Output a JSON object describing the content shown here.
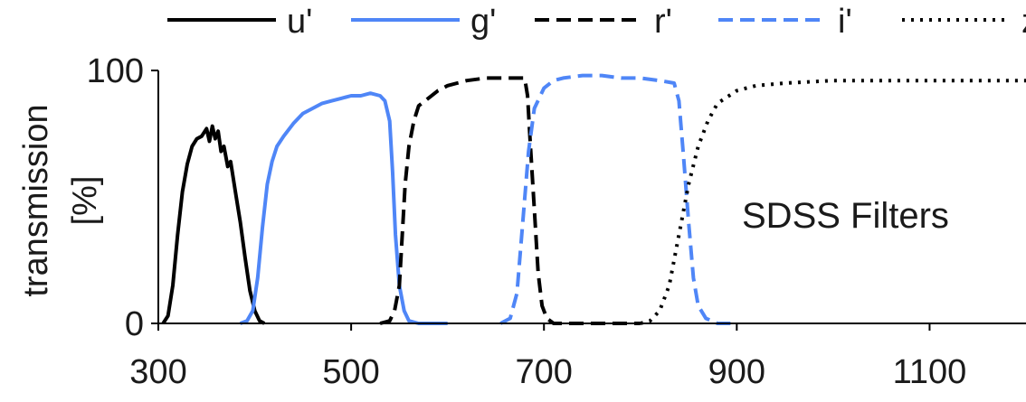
{
  "chart_data": {
    "type": "line",
    "title": "",
    "annotation": "SDSS Filters",
    "xlabel": "",
    "ylabel": [
      "transmission",
      "[%]"
    ],
    "xlim": [
      300,
      1200
    ],
    "ylim": [
      0,
      100
    ],
    "x_ticks": [
      300,
      500,
      700,
      900,
      1100
    ],
    "y_ticks": [
      0,
      100
    ],
    "grid": false,
    "legend_position": "top",
    "series": [
      {
        "name": "u'",
        "color": "#000000",
        "style": "solid",
        "points": [
          [
            305,
            0
          ],
          [
            310,
            3
          ],
          [
            315,
            15
          ],
          [
            320,
            35
          ],
          [
            325,
            52
          ],
          [
            330,
            63
          ],
          [
            335,
            70
          ],
          [
            340,
            73
          ],
          [
            345,
            74
          ],
          [
            350,
            77
          ],
          [
            353,
            72
          ],
          [
            356,
            78
          ],
          [
            359,
            73
          ],
          [
            362,
            76
          ],
          [
            365,
            68
          ],
          [
            368,
            70
          ],
          [
            372,
            62
          ],
          [
            375,
            64
          ],
          [
            380,
            52
          ],
          [
            385,
            40
          ],
          [
            390,
            26
          ],
          [
            395,
            13
          ],
          [
            400,
            5
          ],
          [
            405,
            1
          ],
          [
            410,
            0
          ]
        ]
      },
      {
        "name": "g'",
        "color": "#4f86f7",
        "style": "solid",
        "points": [
          [
            385,
            0
          ],
          [
            392,
            1
          ],
          [
            398,
            5
          ],
          [
            403,
            18
          ],
          [
            408,
            38
          ],
          [
            413,
            55
          ],
          [
            418,
            64
          ],
          [
            423,
            70
          ],
          [
            430,
            74
          ],
          [
            440,
            79
          ],
          [
            450,
            83
          ],
          [
            460,
            85
          ],
          [
            470,
            87
          ],
          [
            480,
            88
          ],
          [
            490,
            89
          ],
          [
            500,
            90
          ],
          [
            510,
            90
          ],
          [
            520,
            91
          ],
          [
            530,
            90
          ],
          [
            535,
            88
          ],
          [
            540,
            80
          ],
          [
            543,
            60
          ],
          [
            546,
            35
          ],
          [
            550,
            15
          ],
          [
            555,
            5
          ],
          [
            560,
            1
          ],
          [
            570,
            0
          ],
          [
            600,
            0
          ]
        ]
      },
      {
        "name": "r'",
        "color": "#000000",
        "style": "dash",
        "points": [
          [
            530,
            0
          ],
          [
            540,
            1
          ],
          [
            545,
            5
          ],
          [
            550,
            15
          ],
          [
            553,
            35
          ],
          [
            556,
            55
          ],
          [
            560,
            70
          ],
          [
            565,
            80
          ],
          [
            570,
            86
          ],
          [
            580,
            89
          ],
          [
            590,
            92
          ],
          [
            600,
            94
          ],
          [
            610,
            95
          ],
          [
            620,
            96
          ],
          [
            640,
            97
          ],
          [
            660,
            97
          ],
          [
            680,
            97
          ],
          [
            683,
            90
          ],
          [
            686,
            70
          ],
          [
            690,
            45
          ],
          [
            694,
            20
          ],
          [
            698,
            7
          ],
          [
            703,
            2
          ],
          [
            710,
            0
          ],
          [
            760,
            0
          ],
          [
            800,
            0
          ]
        ]
      },
      {
        "name": "i'",
        "color": "#4f86f7",
        "style": "dash",
        "points": [
          [
            655,
            0
          ],
          [
            665,
            2
          ],
          [
            672,
            12
          ],
          [
            678,
            40
          ],
          [
            684,
            68
          ],
          [
            690,
            85
          ],
          [
            700,
            93
          ],
          [
            710,
            96
          ],
          [
            720,
            97
          ],
          [
            740,
            98
          ],
          [
            760,
            98
          ],
          [
            780,
            97
          ],
          [
            800,
            97
          ],
          [
            820,
            96
          ],
          [
            835,
            95
          ],
          [
            840,
            88
          ],
          [
            845,
            65
          ],
          [
            850,
            40
          ],
          [
            855,
            18
          ],
          [
            860,
            7
          ],
          [
            868,
            2
          ],
          [
            880,
            0
          ],
          [
            900,
            0
          ]
        ]
      },
      {
        "name": "z'",
        "color": "#000000",
        "style": "dot",
        "points": [
          [
            800,
            0
          ],
          [
            810,
            1
          ],
          [
            820,
            5
          ],
          [
            830,
            15
          ],
          [
            840,
            35
          ],
          [
            850,
            55
          ],
          [
            860,
            70
          ],
          [
            870,
            80
          ],
          [
            880,
            87
          ],
          [
            900,
            92
          ],
          [
            920,
            94
          ],
          [
            950,
            95
          ],
          [
            1000,
            96
          ],
          [
            1050,
            96
          ],
          [
            1100,
            96
          ],
          [
            1150,
            96
          ],
          [
            1200,
            96
          ]
        ]
      }
    ]
  }
}
